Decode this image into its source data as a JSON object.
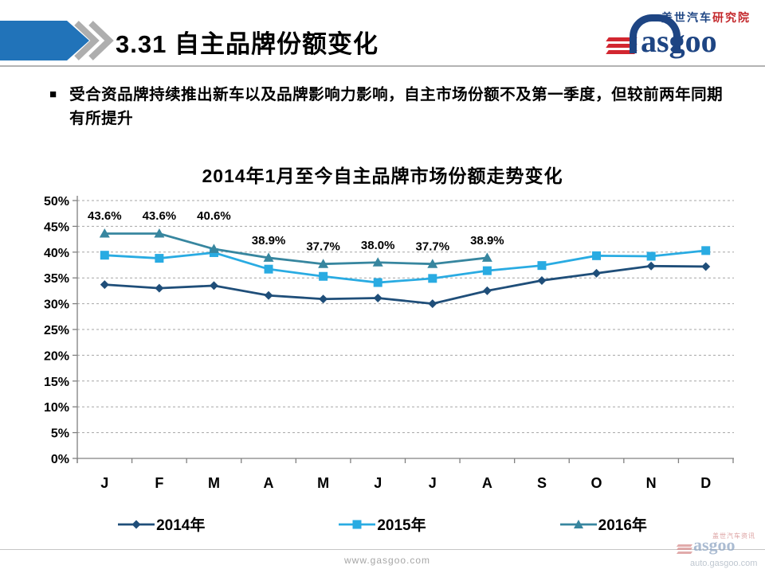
{
  "header": {
    "title": "3.31  自主品牌份额变化",
    "logo": {
      "brand_cn": "盖世汽车",
      "brand_cn_suffix": "研究院",
      "brand_en": "asgoo"
    }
  },
  "bullet": {
    "marker": "■",
    "text": "受合资品牌持续推出新车以及品牌影响力影响，自主市场份额不及第一季度，但较前两年同期有所提升"
  },
  "chart_data": {
    "type": "line",
    "title": "2014年1月至今自主品牌市场份额走势变化",
    "xlabel": "",
    "ylabel": "",
    "categories": [
      "J",
      "F",
      "M",
      "A",
      "M",
      "J",
      "J",
      "A",
      "S",
      "O",
      "N",
      "D"
    ],
    "y_ticks": [
      "0%",
      "5%",
      "10%",
      "15%",
      "20%",
      "25%",
      "30%",
      "35%",
      "40%",
      "45%",
      "50%"
    ],
    "ylim": [
      0,
      50
    ],
    "grid": "horizontal-dashed",
    "legend_position": "bottom",
    "axis_color": "#808080",
    "grid_color": "#a6a6a6",
    "series": [
      {
        "name": "2014年",
        "color": "#1f4e79",
        "marker": "diamond",
        "values": [
          33.7,
          33.0,
          33.5,
          31.6,
          30.9,
          31.1,
          30.0,
          32.5,
          34.5,
          35.9,
          37.3,
          37.2
        ]
      },
      {
        "name": "2015年",
        "color": "#29abe2",
        "marker": "square",
        "values": [
          39.4,
          38.8,
          39.9,
          36.7,
          35.3,
          34.1,
          34.9,
          36.4,
          37.4,
          39.3,
          39.2,
          40.3
        ]
      },
      {
        "name": "2016年",
        "color": "#37869f",
        "marker": "triangle",
        "values": [
          43.6,
          43.6,
          40.6,
          38.9,
          37.7,
          38.0,
          37.7,
          38.9
        ],
        "data_labels": [
          "43.6%",
          "43.6%",
          "40.6%",
          "38.9%",
          "37.7%",
          "38.0%",
          "37.7%",
          "38.9%"
        ]
      }
    ]
  },
  "footer": {
    "url_center": "www.gasgoo.com",
    "logo_cn": "盖世汽车资讯",
    "logo_en": "asgoo",
    "url_right": "auto.gasgoo.com"
  }
}
